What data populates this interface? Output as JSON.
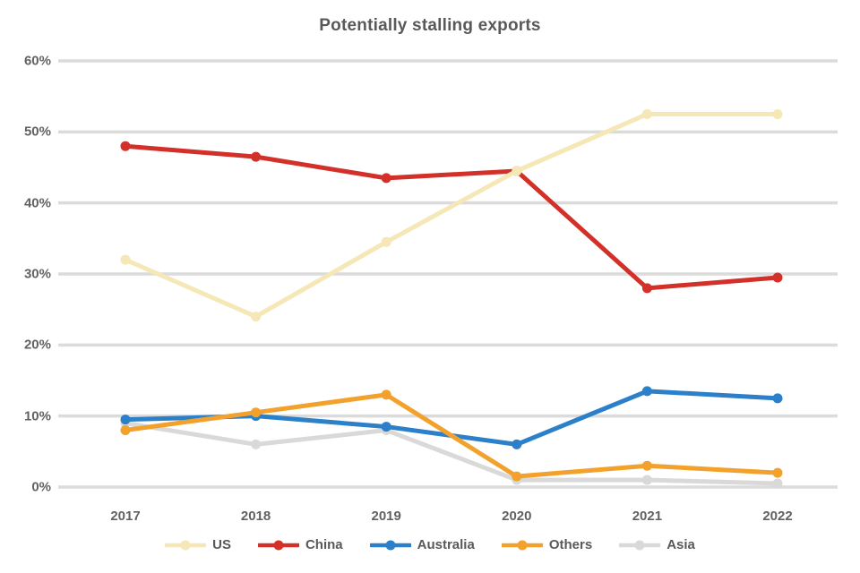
{
  "title": "Potentially stalling exports",
  "colors": {
    "background": "#ffffff",
    "gridline": "#dbdbdb",
    "title_text": "#595959",
    "axis_text": "#616161",
    "legend_text": "#595959"
  },
  "chart_data": {
    "type": "line",
    "title": "Potentially stalling exports",
    "categories": [
      "2017",
      "2018",
      "2019",
      "2020",
      "2021",
      "2022"
    ],
    "series": [
      {
        "name": "US",
        "color": "#f5e7b6",
        "values": [
          32,
          24,
          34.5,
          44.5,
          52.5,
          52.5
        ]
      },
      {
        "name": "China",
        "color": "#d3302a",
        "values": [
          48,
          46.5,
          43.5,
          44.5,
          28,
          29.5
        ]
      },
      {
        "name": "Australia",
        "color": "#2b80c9",
        "values": [
          9.5,
          10,
          8.5,
          6,
          13.5,
          12.5
        ]
      },
      {
        "name": "Others",
        "color": "#f2a22c",
        "values": [
          8,
          10.5,
          13,
          1.5,
          3,
          2
        ]
      },
      {
        "name": "Asia",
        "color": "#d9d9d9",
        "values": [
          9,
          6,
          8,
          1,
          1,
          0.5
        ]
      }
    ],
    "xlabel": "",
    "ylabel": "",
    "ylim": [
      0,
      60
    ],
    "y_ticks": [
      "0%",
      "10%",
      "20%",
      "30%",
      "40%",
      "50%",
      "60%"
    ],
    "grid": true,
    "legend_position": "bottom"
  }
}
